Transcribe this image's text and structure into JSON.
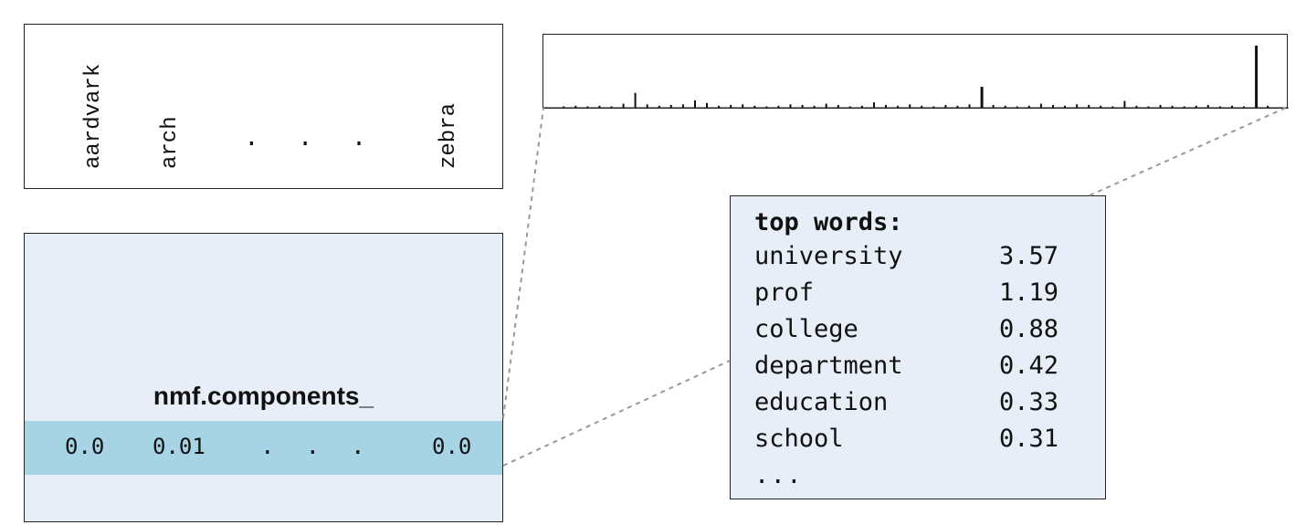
{
  "vocabulary": {
    "words": [
      "aardvark",
      "arch",
      "zebra"
    ],
    "ellipsis": ". . ."
  },
  "matrix": {
    "title": "nmf.components_",
    "row_values": [
      "0.0",
      "0.01",
      "0.0"
    ],
    "ellipsis": ". . ."
  },
  "top_words": {
    "title": "top words:",
    "rows": [
      {
        "word": "university",
        "value": "3.57"
      },
      {
        "word": "prof",
        "value": "1.19"
      },
      {
        "word": "college",
        "value": "0.88"
      },
      {
        "word": "department",
        "value": "0.42"
      },
      {
        "word": "education",
        "value": "0.33"
      },
      {
        "word": "school",
        "value": "0.31"
      }
    ],
    "more": "..."
  },
  "chart_data": {
    "type": "bar",
    "note_values": "relative heights of components across vocabulary (0-1)",
    "values": [
      0.02,
      0.03,
      0.02,
      0.03,
      0.02,
      0.06,
      0.22,
      0.05,
      0.03,
      0.04,
      0.05,
      0.11,
      0.07,
      0.03,
      0.04,
      0.05,
      0.03,
      0.02,
      0.03,
      0.05,
      0.04,
      0.03,
      0.06,
      0.04,
      0.02,
      0.03,
      0.08,
      0.04,
      0.03,
      0.05,
      0.03,
      0.02,
      0.04,
      0.03,
      0.05,
      0.31,
      0.04,
      0.03,
      0.02,
      0.03,
      0.06,
      0.04,
      0.03,
      0.05,
      0.04,
      0.03,
      0.02,
      0.1,
      0.03,
      0.02,
      0.04,
      0.03,
      0.02,
      0.03,
      0.04,
      0.02,
      0.03,
      0.02,
      0.92,
      0.03
    ],
    "color": "#111111"
  }
}
